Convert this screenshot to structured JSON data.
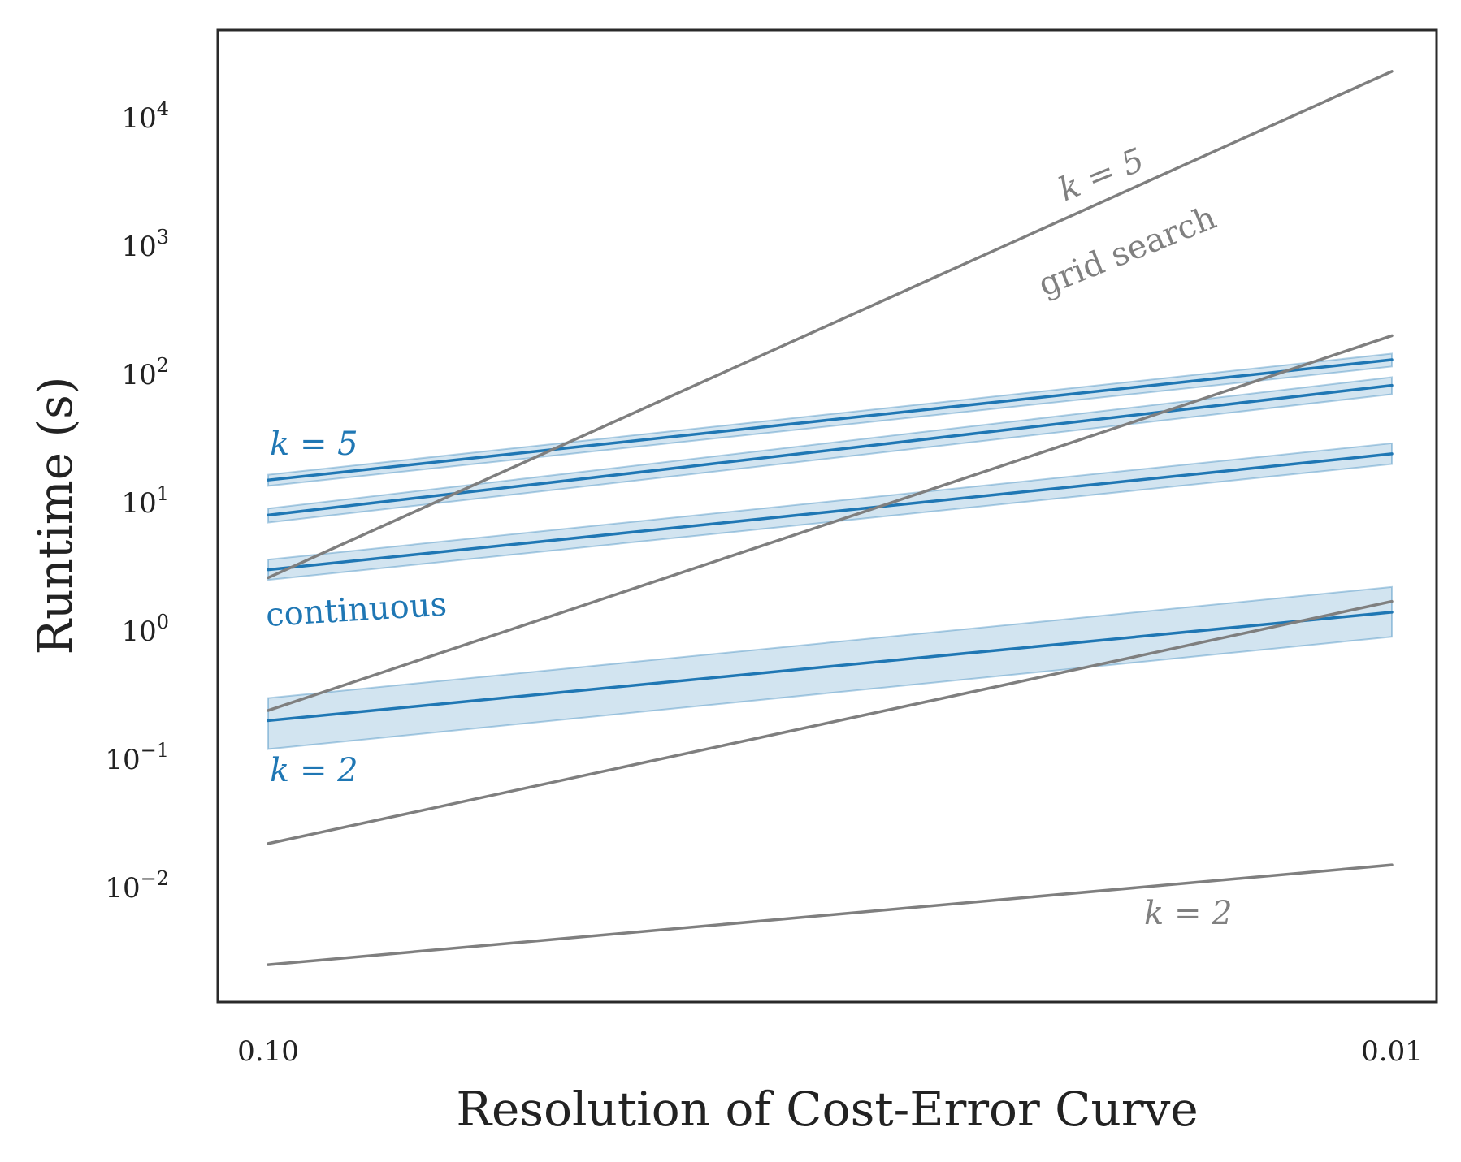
{
  "chart_data": {
    "type": "line",
    "title": "",
    "xlabel": "Resolution of Cost-Error Curve",
    "ylabel": "Runtime (s)",
    "xscale": "log-reversed",
    "yscale": "log",
    "x": [
      0.1,
      0.01
    ],
    "xlim": [
      0.1,
      0.01
    ],
    "ylim": [
      0.0011,
      60000
    ],
    "x_ticks": [
      {
        "value": 0.1,
        "label": "0.10"
      },
      {
        "value": 0.01,
        "label": "0.01"
      }
    ],
    "y_ticks": [
      {
        "value": 0.01,
        "base": "10",
        "exp": "−2"
      },
      {
        "value": 0.1,
        "base": "10",
        "exp": "−1"
      },
      {
        "value": 1,
        "base": "10",
        "exp": "0"
      },
      {
        "value": 10,
        "base": "10",
        "exp": "1"
      },
      {
        "value": 100,
        "base": "10",
        "exp": "2"
      },
      {
        "value": 1000,
        "base": "10",
        "exp": "3"
      },
      {
        "value": 10000,
        "base": "10",
        "exp": "4"
      }
    ],
    "grid": false,
    "series": [
      {
        "name": "continuous k=5",
        "group": "continuous",
        "color": "#1f77b4",
        "values": [
          15,
          130
        ],
        "band_low": [
          13.5,
          115
        ],
        "band_high": [
          16.5,
          145
        ]
      },
      {
        "name": "continuous k=4",
        "group": "continuous",
        "color": "#1f77b4",
        "values": [
          8,
          82
        ],
        "band_low": [
          7,
          70
        ],
        "band_high": [
          9,
          95
        ]
      },
      {
        "name": "continuous k=3",
        "group": "continuous",
        "color": "#1f77b4",
        "values": [
          3,
          24
        ],
        "band_low": [
          2.5,
          20
        ],
        "band_high": [
          3.6,
          29
        ]
      },
      {
        "name": "continuous k=2",
        "group": "continuous",
        "color": "#1f77b4",
        "values": [
          0.2,
          1.4
        ],
        "band_low": [
          0.12,
          0.9
        ],
        "band_high": [
          0.3,
          2.2
        ]
      },
      {
        "name": "grid search k=5",
        "group": "grid search",
        "color": "#7f7f7f",
        "values": [
          2.6,
          23000
        ]
      },
      {
        "name": "grid search k=4",
        "group": "grid search",
        "color": "#7f7f7f",
        "values": [
          0.24,
          200
        ]
      },
      {
        "name": "grid search k=3",
        "group": "grid search",
        "color": "#7f7f7f",
        "values": [
          0.022,
          1.7
        ]
      },
      {
        "name": "grid search k=2",
        "group": "grid search",
        "color": "#7f7f7f",
        "values": [
          0.0025,
          0.015
        ]
      }
    ],
    "annotations": [
      {
        "text": "k = 5",
        "color": "#1f77b4",
        "style": "italic"
      },
      {
        "text": "continuous",
        "color": "#1f77b4",
        "style": "normal"
      },
      {
        "text": "k = 2",
        "color": "#1f77b4",
        "style": "italic"
      },
      {
        "text": "k = 5",
        "color": "#808080",
        "style": "italic"
      },
      {
        "text": "grid search",
        "color": "#808080",
        "style": "normal"
      },
      {
        "text": "k = 2",
        "color": "#808080",
        "style": "italic"
      }
    ]
  }
}
